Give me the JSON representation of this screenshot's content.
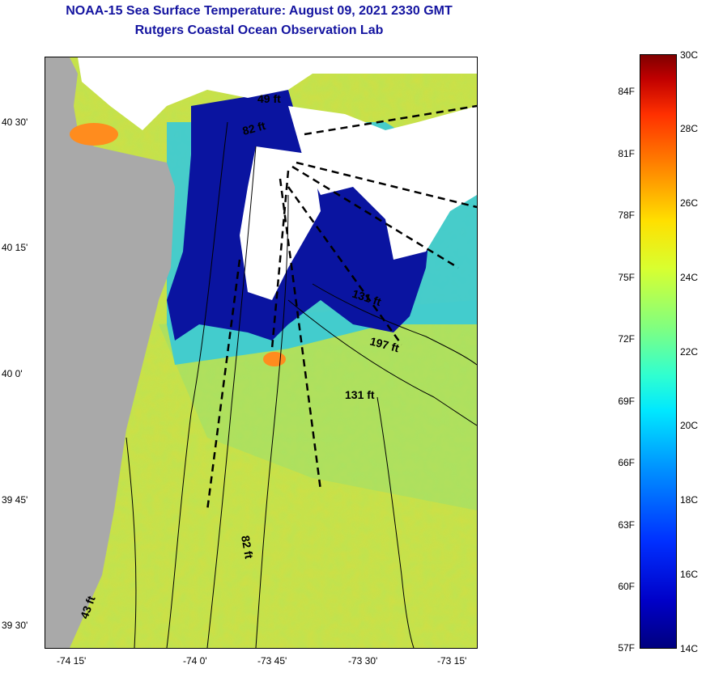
{
  "title": {
    "line1": "NOAA-15 Sea Surface Temperature:  August 09, 2021 2330 GMT",
    "line2": "Rutgers Coastal Ocean Observation Lab"
  },
  "map": {
    "latitude_labels": [
      "40 30'",
      "40 15'",
      "40 0'",
      "39 45'",
      "39 30'"
    ],
    "longitude_labels": [
      "-74 15'",
      "-74 0'",
      "-73 45'",
      "-73 30'",
      "-73 15'"
    ],
    "depth_labels": [
      "49 ft",
      "82 ft",
      "131 ft",
      "197 ft",
      "131 ft",
      "82 ft",
      "43 ft"
    ],
    "colors": {
      "land": "#a9a9a9",
      "cloud": "#ffffff",
      "cold_water": "#0a14a0",
      "warm_water": "#d2e040",
      "hot_spot": "#ff8c1e"
    }
  },
  "colorbar": {
    "fahrenheit_labels": [
      "84F",
      "81F",
      "78F",
      "75F",
      "72F",
      "69F",
      "66F",
      "63F",
      "60F",
      "57F"
    ],
    "celsius_labels": [
      "30C",
      "28C",
      "26C",
      "24C",
      "22C",
      "20C",
      "18C",
      "16C",
      "14C"
    ]
  }
}
